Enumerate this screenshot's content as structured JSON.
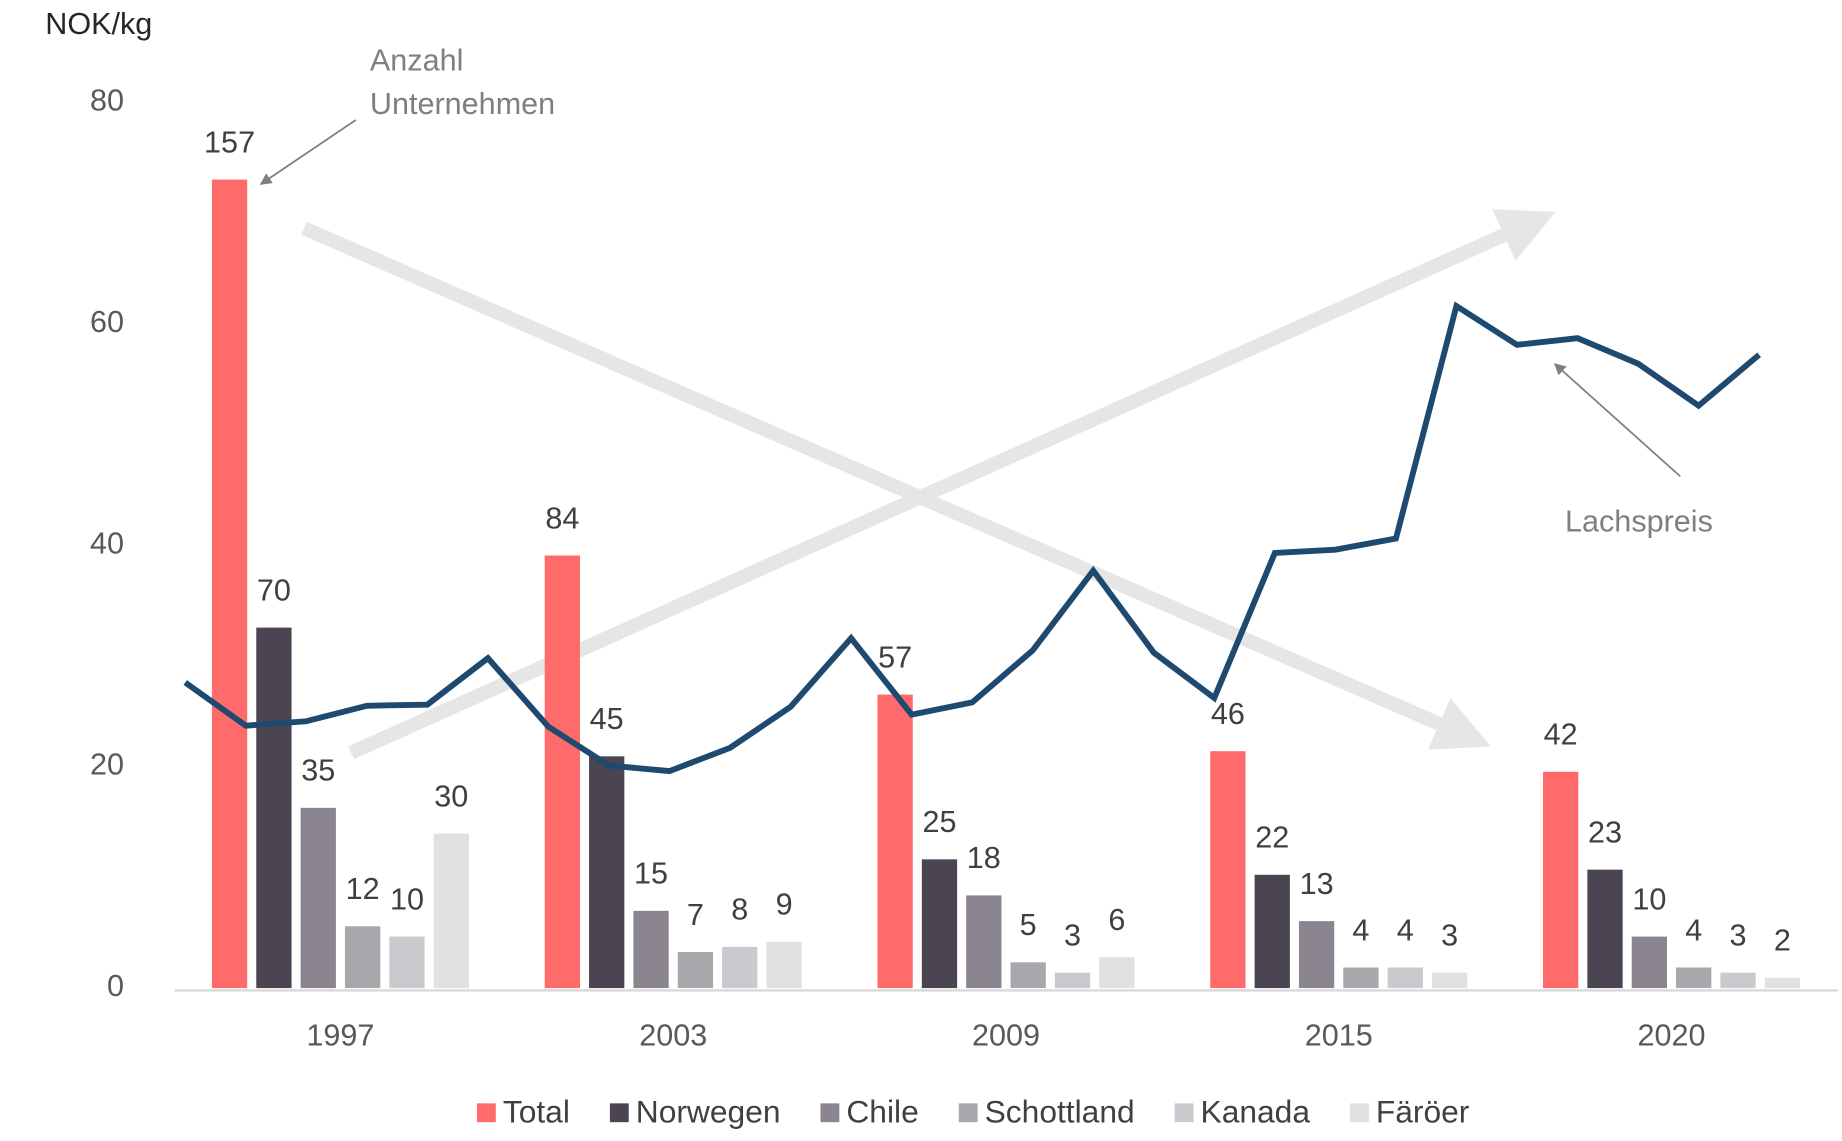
{
  "chart_data": {
    "type": "bar",
    "y_axis_label": "NOK/kg",
    "categories": [
      "1997",
      "2003",
      "2009",
      "2015",
      "2020"
    ],
    "ylim": [
      0,
      80
    ],
    "yticks": [
      0,
      20,
      40,
      60,
      80
    ],
    "y2lim": [
      0,
      172
    ],
    "series": [
      {
        "name": "Total",
        "color": "#ff6b6b",
        "axis": "y2",
        "values": [
          157,
          84,
          57,
          46,
          42
        ]
      },
      {
        "name": "Norwegen",
        "color": "#4a4550",
        "axis": "y2",
        "values": [
          70,
          45,
          25,
          22,
          23
        ]
      },
      {
        "name": "Chile",
        "color": "#8a858e",
        "axis": "y2",
        "values": [
          35,
          15,
          18,
          13,
          10
        ]
      },
      {
        "name": "Schottland",
        "color": "#a9a6ac",
        "axis": "y2",
        "values": [
          12,
          7,
          5,
          4,
          4
        ]
      },
      {
        "name": "Kanada",
        "color": "#cbc9cd",
        "axis": "y2",
        "values": [
          10,
          8,
          3,
          4,
          3
        ]
      },
      {
        "name": "Färöer",
        "color": "#e1e0e2",
        "axis": "y2",
        "values": [
          30,
          9,
          6,
          3,
          2
        ]
      }
    ],
    "line": {
      "type": "line",
      "color": "#1f4a70",
      "values": [
        27.6,
        23.7,
        24.1,
        25.5,
        25.6,
        29.8,
        23.6,
        20.1,
        19.6,
        21.7,
        25.4,
        31.6,
        24.7,
        25.8,
        30.5,
        37.7,
        30.3,
        26.2,
        39.3,
        39.6,
        40.6,
        61.6,
        58.1,
        58.7,
        56.4,
        52.6,
        57.2
      ]
    },
    "annotations": [
      {
        "lines": [
          "Anzahl",
          "Unternehmen"
        ]
      },
      {
        "lines": [
          "Lachspreis"
        ]
      }
    ]
  }
}
